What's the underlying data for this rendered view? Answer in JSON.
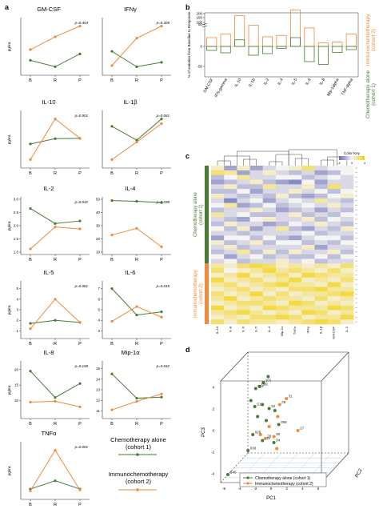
{
  "panels": {
    "a": "a",
    "b": "b",
    "c": "c",
    "d": "d"
  },
  "legend_a": {
    "chemo": "Chemotherapy alone\n(cohort 1)",
    "immuno": "Immunochemotherapy\n(cohort 2)"
  },
  "colors": {
    "chemo": "#4a7a35",
    "immuno": "#f08a3a",
    "heat_low": "#6c6fb8",
    "heat_mid": "#f4f4f2",
    "heat_high": "#f3d31a"
  },
  "chart_data": [
    {
      "id": "a-gmcsf",
      "type": "line",
      "title": "GM-CSF",
      "ylabel": "pg/mL",
      "pvalue": "p=0.404",
      "categories": [
        "B",
        "R",
        "P"
      ],
      "yticks": [],
      "series": [
        {
          "name": "Chemotherapy alone (cohort 1)",
          "values": [
            0.45,
            0.3,
            0.6
          ]
        },
        {
          "name": "Immunochemotherapy (cohort 2)",
          "values": [
            0.7,
            1.0,
            1.25
          ]
        }
      ]
    },
    {
      "id": "a-ifng",
      "type": "line",
      "title": "IFNγ",
      "ylabel": "",
      "pvalue": "p=0.305",
      "categories": [
        "B",
        "R",
        "P"
      ],
      "yticks": [],
      "series": [
        {
          "name": "Chemotherapy alone (cohort 1)",
          "values": [
            0.85,
            0.15,
            0.35
          ]
        },
        {
          "name": "Immunochemotherapy (cohort 2)",
          "values": [
            0.2,
            1.45,
            2.0
          ]
        }
      ]
    },
    {
      "id": "a-il10",
      "type": "line",
      "title": "IL-10",
      "ylabel": "pg/mL",
      "pvalue": "p=0.901",
      "categories": [
        "B",
        "R",
        "P"
      ],
      "yticks": [],
      "series": [
        {
          "name": "Chemotherapy alone (cohort 1)",
          "values": [
            0.85,
            1.02,
            1.03
          ]
        },
        {
          "name": "Immunochemotherapy (cohort 2)",
          "values": [
            0.35,
            1.65,
            1.03
          ]
        }
      ]
    },
    {
      "id": "a-il1b",
      "type": "line",
      "title": "IL-1β",
      "ylabel": "",
      "pvalue": "p=0.061",
      "categories": [
        "B",
        "R",
        "P"
      ],
      "yticks": [],
      "series": [
        {
          "name": "Chemotherapy alone (cohort 1)",
          "values": [
            2.2,
            1.45,
            2.6
          ]
        },
        {
          "name": "Immunochemotherapy (cohort 2)",
          "values": [
            0.4,
            1.35,
            2.35
          ]
        }
      ]
    },
    {
      "id": "a-il2",
      "type": "line",
      "title": "IL-2",
      "ylabel": "pg/mL",
      "pvalue": "p=0.042",
      "categories": [
        "B",
        "R",
        "P"
      ],
      "yticks": [
        "1.0",
        "1.5",
        "2.0",
        "2.5",
        "3.0"
      ],
      "ylim": [
        1.0,
        3.0
      ],
      "series": [
        {
          "name": "Chemotherapy alone (cohort 1)",
          "values": [
            2.65,
            2.08,
            2.18
          ]
        },
        {
          "name": "Immunochemotherapy (cohort 2)",
          "values": [
            1.12,
            1.95,
            1.88
          ]
        }
      ]
    },
    {
      "id": "a-il4",
      "type": "line",
      "title": "IL-4",
      "ylabel": "",
      "pvalue": "p=0.038",
      "categories": [
        "B",
        "R",
        "P"
      ],
      "yticks": [
        "10",
        "20",
        "30",
        "40",
        "50"
      ],
      "ylim": [
        10,
        50
      ],
      "series": [
        {
          "name": "Chemotherapy alone (cohort 1)",
          "values": [
            49,
            48.5,
            47.5
          ]
        },
        {
          "name": "Immunochemotherapy (cohort 2)",
          "values": [
            23,
            28,
            14
          ]
        }
      ]
    },
    {
      "id": "a-il5",
      "type": "line",
      "title": "IL-5",
      "ylabel": "pg/mL",
      "pvalue": "p=0.081",
      "categories": [
        "B",
        "R",
        "P"
      ],
      "yticks": [
        "1",
        "2",
        "3",
        "4",
        "5"
      ],
      "ylim": [
        0.5,
        5.5
      ],
      "series": [
        {
          "name": "Chemotherapy alone (cohort 1)",
          "values": [
            1.7,
            2.0,
            1.8
          ]
        },
        {
          "name": "Immunochemotherapy (cohort 2)",
          "values": [
            1.2,
            4.0,
            1.8
          ]
        }
      ]
    },
    {
      "id": "a-il6",
      "type": "line",
      "title": "IL-6",
      "ylabel": "",
      "pvalue": "p=0.015",
      "categories": [
        "B",
        "R",
        "P"
      ],
      "yticks": [
        "3",
        "4",
        "5",
        "6",
        "7"
      ],
      "ylim": [
        2.5,
        7.5
      ],
      "series": [
        {
          "name": "Chemotherapy alone (cohort 1)",
          "values": [
            7.0,
            4.5,
            4.8
          ]
        },
        {
          "name": "Immunochemotherapy (cohort 2)",
          "values": [
            3.9,
            5.3,
            4.3
          ]
        }
      ]
    },
    {
      "id": "a-il8",
      "type": "line",
      "title": "IL-8",
      "ylabel": "pg/mL",
      "pvalue": "p=0.169",
      "categories": [
        "B",
        "R",
        "P"
      ],
      "yticks": [
        "10",
        "15",
        "20"
      ],
      "ylim": [
        5,
        22
      ],
      "series": [
        {
          "name": "Chemotherapy alone (cohort 1)",
          "values": [
            19.5,
            11.0,
            15.5
          ]
        },
        {
          "name": "Immunochemotherapy (cohort 2)",
          "values": [
            9.5,
            9.8,
            8.0
          ]
        }
      ]
    },
    {
      "id": "a-mip1a",
      "type": "line",
      "title": "Mip-1α",
      "ylabel": "",
      "pvalue": "p=0.042",
      "categories": [
        "B",
        "R",
        "P"
      ],
      "yticks": [
        "11",
        "12",
        "13",
        "14",
        "15"
      ],
      "ylim": [
        10.5,
        15.5
      ],
      "series": [
        {
          "name": "Chemotherapy alone (cohort 1)",
          "values": [
            14.5,
            12.2,
            12.3
          ]
        },
        {
          "name": "Immunochemotherapy (cohort 2)",
          "values": [
            11.1,
            11.9,
            12.6
          ]
        }
      ]
    },
    {
      "id": "a-tnfa",
      "type": "line",
      "title": "TNFα",
      "ylabel": "pg/mL",
      "pvalue": "p=0.001",
      "categories": [
        "B",
        "R",
        "P"
      ],
      "yticks": [],
      "series": [
        {
          "name": "Chemotherapy alone (cohort 1)",
          "values": [
            0.35,
            0.8,
            0.35
          ]
        },
        {
          "name": "Immunochemotherapy (cohort 2)",
          "values": [
            0.25,
            2.45,
            0.3
          ]
        }
      ]
    },
    {
      "id": "b",
      "type": "bar",
      "ylabel": "% of variation from Baseline to Response",
      "yticks": [
        "-50",
        "0",
        "50",
        "100",
        "150",
        "200"
      ],
      "categories": [
        "GM-CSF",
        "IFN-gamma",
        "IL-10",
        "IL-1b",
        "IL-2",
        "IL-4",
        "IL-5",
        "IL-6",
        "IL-8",
        "Mip-1alpha",
        "TNF-alpha"
      ],
      "series": [
        {
          "name": "Immunochemotherapy (cohort 2)",
          "values": [
            20,
            28,
            105,
            48,
            22,
            25,
            195,
            42,
            8,
            10,
            28
          ]
        },
        {
          "name": "Chemotherapy alone (cohort 1)",
          "values": [
            -10,
            -16,
            15,
            -22,
            -18,
            -5,
            20,
            -38,
            -45,
            -15,
            -8
          ]
        }
      ],
      "series_labels": [
        "Immunochemotherapy\n(cohort 2)",
        "Chemotherapy alone\n(cohort 1)"
      ]
    },
    {
      "id": "c",
      "type": "heatmap",
      "columns": [
        "IL-10",
        "IL-8",
        "IL-6",
        "IL-5",
        "IL-4",
        "Mip-1α",
        "TNFα",
        "IFNγ",
        "IL-1β",
        "GM-CSF",
        "IL-2"
      ],
      "group_labels": [
        "Chemotherapy alone\n(cohort 1)",
        "Immunochemotherapy\n(cohort 2)"
      ],
      "colorkey_title": "Color Key",
      "colorkey_ticks": [
        "-4",
        "0",
        "4"
      ],
      "rows": [
        [
          0.6,
          0.2,
          0.6,
          0.2,
          0.4,
          0.5,
          0.6,
          0.8,
          0.4,
          0.5,
          0.5
        ],
        [
          0.8,
          0.7,
          0.2,
          0.4,
          0.6,
          0.4,
          0.3,
          0.4,
          0.2,
          0.3,
          0.5
        ],
        [
          0.3,
          0.5,
          0.7,
          0.4,
          0.4,
          0.5,
          0.5,
          0.3,
          0.4,
          0.5,
          0.4
        ],
        [
          0.2,
          0.3,
          0.4,
          0.6,
          0.3,
          0.2,
          0.1,
          0.5,
          0.2,
          0.4,
          0.4
        ],
        [
          0.4,
          0.6,
          0.3,
          0.3,
          0.7,
          0.4,
          0.4,
          0.6,
          0.3,
          0.8,
          0.4
        ],
        [
          0.3,
          0.3,
          0.5,
          0.2,
          0.4,
          0.4,
          0.6,
          0.4,
          0.5,
          0.3,
          0.5
        ],
        [
          0.6,
          0.4,
          0.3,
          0.4,
          0.3,
          0.6,
          0.3,
          0.2,
          0.3,
          0.5,
          0.6
        ],
        [
          0.4,
          0.1,
          0.4,
          0.5,
          0.2,
          0.4,
          0.5,
          0.4,
          0.7,
          0.4,
          0.3
        ],
        [
          0.5,
          0.7,
          0.2,
          0.3,
          0.5,
          0.3,
          0.4,
          0.5,
          0.4,
          0.6,
          0.4
        ],
        [
          0.3,
          0.4,
          0.4,
          0.6,
          0.4,
          0.2,
          0.3,
          0.4,
          0.2,
          0.4,
          0.3
        ],
        [
          0.7,
          0.4,
          0.5,
          0.3,
          0.3,
          0.4,
          0.6,
          0.3,
          0.4,
          0.3,
          0.5
        ],
        [
          0.4,
          0.3,
          0.2,
          0.5,
          0.6,
          0.4,
          0.4,
          0.6,
          0.3,
          0.5,
          0.4
        ],
        [
          0.3,
          0.6,
          0.4,
          0.4,
          0.2,
          0.3,
          0.5,
          0.4,
          0.6,
          0.4,
          0.3
        ],
        [
          0.5,
          0.3,
          0.6,
          0.2,
          0.4,
          0.7,
          0.3,
          0.2,
          0.4,
          0.3,
          0.6
        ],
        [
          0.4,
          0.4,
          0.3,
          0.4,
          0.4,
          0.4,
          0.4,
          0.5,
          0.3,
          0.4,
          0.4
        ],
        [
          0.2,
          0.5,
          0.5,
          0.3,
          0.5,
          0.3,
          0.2,
          0.4,
          0.5,
          0.5,
          0.3
        ],
        [
          0.6,
          0.3,
          0.4,
          0.6,
          0.3,
          0.5,
          0.5,
          0.3,
          0.4,
          0.3,
          0.5
        ],
        [
          0.4,
          0.6,
          0.3,
          0.4,
          0.4,
          0.4,
          0.4,
          0.6,
          0.2,
          0.4,
          0.4
        ],
        [
          0.3,
          0.4,
          0.7,
          0.3,
          0.6,
          0.3,
          0.6,
          0.4,
          0.4,
          0.6,
          0.3
        ],
        [
          0.5,
          0.2,
          0.4,
          0.5,
          0.3,
          0.4,
          0.3,
          0.3,
          0.5,
          0.3,
          0.5
        ],
        [
          0.4,
          0.5,
          0.3,
          0.4,
          0.4,
          0.6,
          0.4,
          0.5,
          0.3,
          0.4,
          0.4
        ],
        [
          0.7,
          0.6,
          0.8,
          0.9,
          0.8,
          0.6,
          0.7,
          0.6,
          0.7,
          0.6,
          0.8
        ],
        [
          0.8,
          0.5,
          0.6,
          0.7,
          0.9,
          0.7,
          0.8,
          0.7,
          0.6,
          0.8,
          0.6
        ],
        [
          0.6,
          0.7,
          0.9,
          0.6,
          0.7,
          0.8,
          0.6,
          0.9,
          0.8,
          0.7,
          0.7
        ],
        [
          0.9,
          0.6,
          0.7,
          0.8,
          0.6,
          0.7,
          0.9,
          0.6,
          0.7,
          0.6,
          0.8
        ],
        [
          0.7,
          0.8,
          0.6,
          0.7,
          0.8,
          0.9,
          0.7,
          0.7,
          0.6,
          0.9,
          0.6
        ],
        [
          0.6,
          0.7,
          0.8,
          0.6,
          0.7,
          0.6,
          0.8,
          0.8,
          0.9,
          0.7,
          0.7
        ],
        [
          0.8,
          0.6,
          0.7,
          0.9,
          0.6,
          0.8,
          0.6,
          0.7,
          0.7,
          0.8,
          0.9
        ],
        [
          0.7,
          0.9,
          0.6,
          0.7,
          0.8,
          0.7,
          0.7,
          0.6,
          0.8,
          0.6,
          0.7
        ],
        [
          0.6,
          0.7,
          0.8,
          0.8,
          0.7,
          0.6,
          0.9,
          0.8,
          0.6,
          0.7,
          0.6
        ],
        [
          0.9,
          0.6,
          0.7,
          0.6,
          0.9,
          0.8,
          0.7,
          0.7,
          0.7,
          0.9,
          0.8
        ],
        [
          0.7,
          0.8,
          0.9,
          0.7,
          0.6,
          0.7,
          0.6,
          0.9,
          0.8,
          0.6,
          0.7
        ],
        [
          0.6,
          0.7,
          0.6,
          0.8,
          0.8,
          0.9,
          0.8,
          0.6,
          0.7,
          0.7,
          0.9
        ],
        [
          0.8,
          0.6,
          0.8,
          0.7,
          0.7,
          0.6,
          0.7,
          0.8,
          0.9,
          0.8,
          0.6
        ]
      ],
      "n_chemo_rows": 21
    },
    {
      "id": "d",
      "type": "scatter",
      "xlabel": "PC1",
      "ylabel": "PC2",
      "zlabel": "PC3",
      "xticks": [
        "-6",
        "-4",
        "-2",
        "0",
        "2",
        "4",
        "6"
      ],
      "zticks": [
        "-4",
        "-2",
        "0",
        "2",
        "4"
      ],
      "series": [
        {
          "name": "Chemotherapy alone (cohort 1)",
          "points": [
            {
              "pc1": -0.8,
              "pc3": 2.4,
              "label": "101"
            },
            {
              "pc1": -0.3,
              "pc3": 2.7,
              "label": ""
            },
            {
              "pc1": -1.6,
              "pc3": 2.1,
              "label": "024"
            },
            {
              "pc1": -1.2,
              "pc3": 2.2,
              "label": "099"
            },
            {
              "pc1": -2.1,
              "pc3": 1.5,
              "label": ""
            },
            {
              "pc1": -1.7,
              "pc3": 1.2,
              "label": "S14"
            },
            {
              "pc1": -0.9,
              "pc3": 1.3,
              "label": ""
            },
            {
              "pc1": -0.2,
              "pc3": 1.1,
              "label": "34"
            },
            {
              "pc1": 0.4,
              "pc3": 1.0,
              "label": ""
            },
            {
              "pc1": -1.4,
              "pc3": 0.7,
              "label": ""
            },
            {
              "pc1": -0.5,
              "pc3": 0.5,
              "label": ""
            },
            {
              "pc1": 0.8,
              "pc3": 0.3,
              "label": "005"
            },
            {
              "pc1": -1.9,
              "pc3": -0.2,
              "label": "026"
            },
            {
              "pc1": -0.9,
              "pc3": -0.5,
              "label": "115"
            },
            {
              "pc1": 0.3,
              "pc3": -0.6,
              "label": "04"
            },
            {
              "pc1": -2.4,
              "pc3": -1.0,
              "label": "030"
            },
            {
              "pc1": -4.5,
              "pc3": -2.2,
              "label": "B46"
            }
          ]
        },
        {
          "name": "Immunochemotherapy (cohort 2)",
          "points": [
            {
              "pc1": 1.6,
              "pc3": 1.6,
              "label": "31"
            },
            {
              "pc1": 0.9,
              "pc3": 1.3,
              "label": "28"
            },
            {
              "pc1": 0.7,
              "pc3": 0.7,
              "label": ""
            },
            {
              "pc1": 2.8,
              "pc3": 0.0,
              "label": "27"
            },
            {
              "pc1": 0.3,
              "pc3": -0.3,
              "label": "30"
            },
            {
              "pc1": -0.6,
              "pc3": -0.4,
              "label": "29"
            },
            {
              "pc1": -1.1,
              "pc3": -0.2,
              "label": ""
            },
            {
              "pc1": -0.2,
              "pc3": 0.2,
              "label": ""
            },
            {
              "pc1": 0.6,
              "pc3": -0.9,
              "label": ""
            },
            {
              "pc1": -0.4,
              "pc3": -2.6,
              "label": "05"
            }
          ]
        }
      ],
      "legend": [
        "Chemotherapy alone (cohort 1)",
        "Immunochemotherapy (cohort 2)"
      ]
    }
  ]
}
